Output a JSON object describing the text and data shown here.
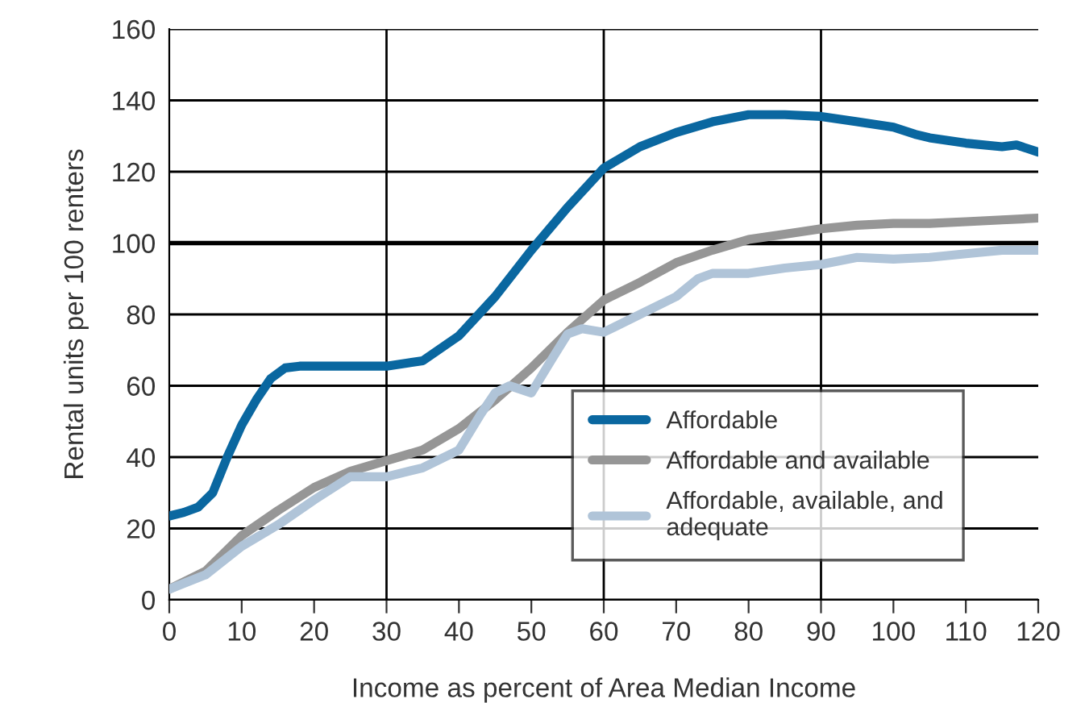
{
  "chart_data": {
    "type": "line",
    "xlabel": "Income as percent of Area Median Income",
    "ylabel": "Rental units per 100 renters",
    "series": [
      {
        "name": "Affordable",
        "color": "#0a67a0",
        "x": [
          0,
          2,
          4,
          6,
          8,
          10,
          12,
          14,
          16,
          18,
          20,
          25,
          30,
          35,
          40,
          45,
          50,
          55,
          60,
          65,
          70,
          75,
          80,
          85,
          90,
          95,
          100,
          103,
          105,
          110,
          115,
          117,
          120
        ],
        "values": [
          23.5,
          24.5,
          26,
          30,
          40,
          49,
          56,
          62,
          65,
          65.5,
          65.5,
          65.5,
          65.5,
          67,
          74,
          85,
          98,
          110,
          121,
          127,
          131,
          134,
          136,
          136,
          135.5,
          134,
          132.5,
          130.5,
          129.5,
          128,
          127,
          127.5,
          125.5
        ]
      },
      {
        "name": "Affordable and available",
        "color": "#969696",
        "x": [
          0,
          5,
          10,
          15,
          20,
          25,
          30,
          35,
          40,
          45,
          50,
          55,
          60,
          65,
          70,
          75,
          80,
          85,
          90,
          95,
          100,
          105,
          110,
          115,
          120
        ],
        "values": [
          3,
          8,
          18,
          25,
          31.5,
          36,
          39,
          42,
          48,
          56,
          65,
          75,
          84,
          89,
          94.5,
          98,
          101,
          102.5,
          104,
          105,
          105.5,
          105.5,
          106,
          106.5,
          107
        ]
      },
      {
        "name": "Affordable, available, and\nadequate",
        "color": "#b0c4d8",
        "x": [
          0,
          5,
          10,
          15,
          20,
          25,
          30,
          35,
          40,
          43,
          45,
          47,
          50,
          53,
          55,
          57,
          60,
          65,
          70,
          73,
          75,
          80,
          85,
          90,
          95,
          100,
          105,
          110,
          115,
          120
        ],
        "values": [
          3,
          7,
          15,
          21,
          28,
          34.5,
          34.5,
          37,
          42,
          52,
          58,
          60,
          58,
          68,
          74.5,
          76,
          75,
          80,
          85,
          90,
          91.5,
          91.5,
          93,
          94,
          96,
          95.5,
          96,
          97,
          98,
          98
        ]
      }
    ],
    "xlim": [
      0,
      120
    ],
    "xticks": [
      0,
      10,
      20,
      30,
      40,
      50,
      60,
      70,
      80,
      90,
      100,
      110,
      120
    ],
    "ylim": [
      0,
      160
    ],
    "yticks": [
      0,
      20,
      40,
      60,
      80,
      100,
      120,
      140,
      160
    ],
    "grid": "y",
    "legend": "lower right",
    "line_style": "solid",
    "marker": "none",
    "ref_lines": [
      {
        "axis": "x",
        "value": 30,
        "label": null
      },
      {
        "axis": "x",
        "value": 60,
        "label": null
      },
      {
        "axis": "x",
        "value": 90,
        "label": null
      },
      {
        "axis": "y",
        "value": 100,
        "label": null
      }
    ]
  }
}
